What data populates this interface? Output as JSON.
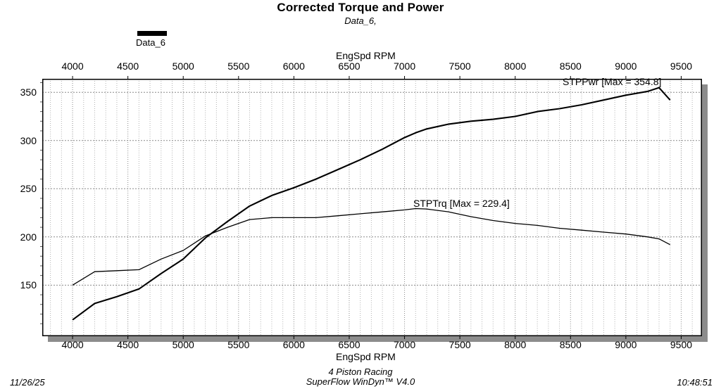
{
  "header": {
    "title": "Corrected Torque and Power",
    "subtitle": "Data_6,"
  },
  "legend": {
    "label": "Data_6",
    "swatch_color": "#000000"
  },
  "axes": {
    "top_label": "EngSpd RPM",
    "bottom_label": "EngSpd RPM"
  },
  "annotations": {
    "power": "STPPwr [Max = 354.8]",
    "torque": "STPTrq [Max = 229.4]"
  },
  "footer": {
    "date": "11/26/25",
    "customer": "4 Piston Racing",
    "software": "SuperFlow WinDyn™ V4.0",
    "time": "10:48:51"
  },
  "chart_data": {
    "type": "line",
    "title": "Corrected Torque and Power",
    "xlabel": "EngSpd RPM",
    "ylabel": "",
    "xlim": [
      3726,
      9688
    ],
    "ylim": [
      97,
      364
    ],
    "x_ticks": [
      4000,
      4500,
      5000,
      5500,
      6000,
      6500,
      7000,
      7500,
      8000,
      8500,
      9000,
      9500
    ],
    "y_ticks": [
      150,
      200,
      250,
      300,
      350
    ],
    "x_minor_step": 100,
    "y_minor_step": 10,
    "grid": true,
    "legend_position": "top-left",
    "x": [
      4000,
      4200,
      4400,
      4600,
      4800,
      5000,
      5200,
      5400,
      5600,
      5800,
      6000,
      6200,
      6400,
      6600,
      6800,
      7000,
      7100,
      7200,
      7400,
      7600,
      7800,
      8000,
      8200,
      8400,
      8600,
      8800,
      9000,
      9200,
      9300,
      9400
    ],
    "series": [
      {
        "name": "STPPwr",
        "max": 354.8,
        "stroke_width": 2.1,
        "values": [
          114,
          131,
          138,
          146,
          162,
          177,
          199,
          216,
          232,
          243,
          251,
          260,
          270,
          280,
          291,
          303,
          308,
          312,
          317,
          320,
          322,
          325,
          330,
          333,
          337,
          342,
          347,
          351,
          354.8,
          342
        ]
      },
      {
        "name": "STPTrq",
        "max": 229.4,
        "stroke_width": 1.3,
        "values": [
          150,
          164,
          165,
          166,
          177,
          186,
          201,
          210,
          218,
          220,
          220,
          220,
          222,
          224,
          226,
          228,
          229.4,
          229,
          226,
          221,
          217,
          214,
          212,
          209,
          207,
          205,
          203,
          200,
          198,
          192
        ]
      }
    ],
    "colors": {
      "curve": "#000000",
      "grid_minor": "#b3b3b3",
      "grid_major": "#8a8a8a",
      "border": "#000000",
      "shadow": "#8c8c8c"
    }
  }
}
